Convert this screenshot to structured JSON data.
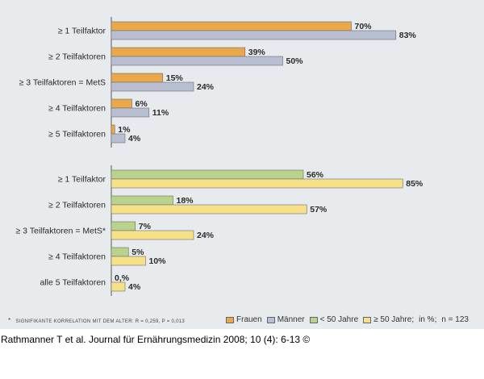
{
  "chart_data": [
    {
      "type": "bar",
      "orientation": "horizontal",
      "categories": [
        "≥ 1 Teilfaktor",
        "≥ 2 Teilfaktoren",
        "≥ 3 Teilfaktoren = MetS",
        "≥ 4 Teilfaktoren",
        "≥ 5 Teilfaktoren"
      ],
      "series": [
        {
          "name": "Frauen",
          "color": "#e9a84a",
          "values": [
            70,
            39,
            15,
            6,
            1
          ],
          "labels": [
            "70%",
            "39%",
            "15%",
            "6%",
            "1%"
          ]
        },
        {
          "name": "Männer",
          "color": "#b9bfd2",
          "values": [
            83,
            50,
            24,
            11,
            4
          ],
          "labels": [
            "83%",
            "50%",
            "24%",
            "11%",
            "4%"
          ]
        }
      ],
      "xlim": [
        0,
        100
      ]
    },
    {
      "type": "bar",
      "orientation": "horizontal",
      "categories": [
        "≥ 1 Teilfaktor",
        "≥ 2 Teilfaktoren",
        "≥ 3 Teilfaktoren = MetS*",
        "≥ 4 Teilfaktoren",
        "alle 5 Teilfaktoren"
      ],
      "series": [
        {
          "name": "< 50 Jahre",
          "color": "#b9d48a",
          "values": [
            56,
            18,
            7,
            5,
            0
          ],
          "labels": [
            "56%",
            "18%",
            "7%",
            "5%",
            "0,%"
          ]
        },
        {
          "name": "≥ 50 Jahre",
          "color": "#f6e08a",
          "values": [
            85,
            57,
            24,
            10,
            4
          ],
          "labels": [
            "85%",
            "57%",
            "24%",
            "10%",
            "4%"
          ]
        }
      ],
      "xlim": [
        0,
        100
      ]
    }
  ],
  "footnote": "SIGNIFIKANTE KORRELATION MIT DEM ALTER: R = 0,259, P = 0,013",
  "footnote_marker": "*",
  "legend": {
    "items": [
      {
        "label": "Frauen",
        "color": "#e9a84a"
      },
      {
        "label": "Männer",
        "color": "#b9bfd2"
      },
      {
        "label": "< 50 Jahre",
        "color": "#b9d48a"
      },
      {
        "label": "≥ 50 Jahre;",
        "color": "#f6e08a"
      }
    ],
    "unit_note": "in %;",
    "n_note": "n = 123"
  },
  "citation": "Rathmanner T et al. Journal für Ernährungsmedizin 2008; 10 (4): 6-13 ©"
}
